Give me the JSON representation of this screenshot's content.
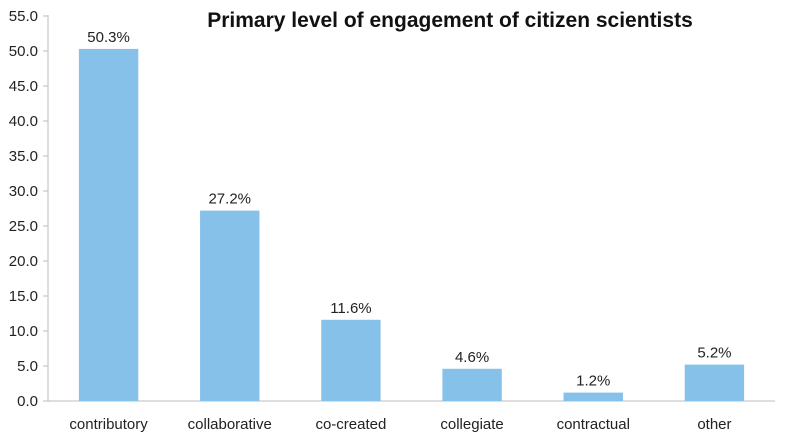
{
  "chart_data": {
    "type": "bar",
    "title": "Primary level of engagement of citizen scientists",
    "categories": [
      "contributory",
      "collaborative",
      "co-created",
      "collegiate",
      "contractual",
      "other"
    ],
    "values": [
      50.3,
      27.2,
      11.6,
      4.6,
      1.2,
      5.2
    ],
    "data_labels": [
      "50.3%",
      "27.2%",
      "11.6%",
      "4.6%",
      "1.2%",
      "5.2%"
    ],
    "y_ticks": [
      "0.0",
      "5.0",
      "10.0",
      "15.0",
      "20.0",
      "25.0",
      "30.0",
      "35.0",
      "40.0",
      "45.0",
      "50.0",
      "55.0"
    ],
    "xlabel": "",
    "ylabel": "",
    "ylim": [
      0,
      55
    ],
    "grid": false,
    "legend": "none",
    "bar_color": "#85C1E9"
  }
}
